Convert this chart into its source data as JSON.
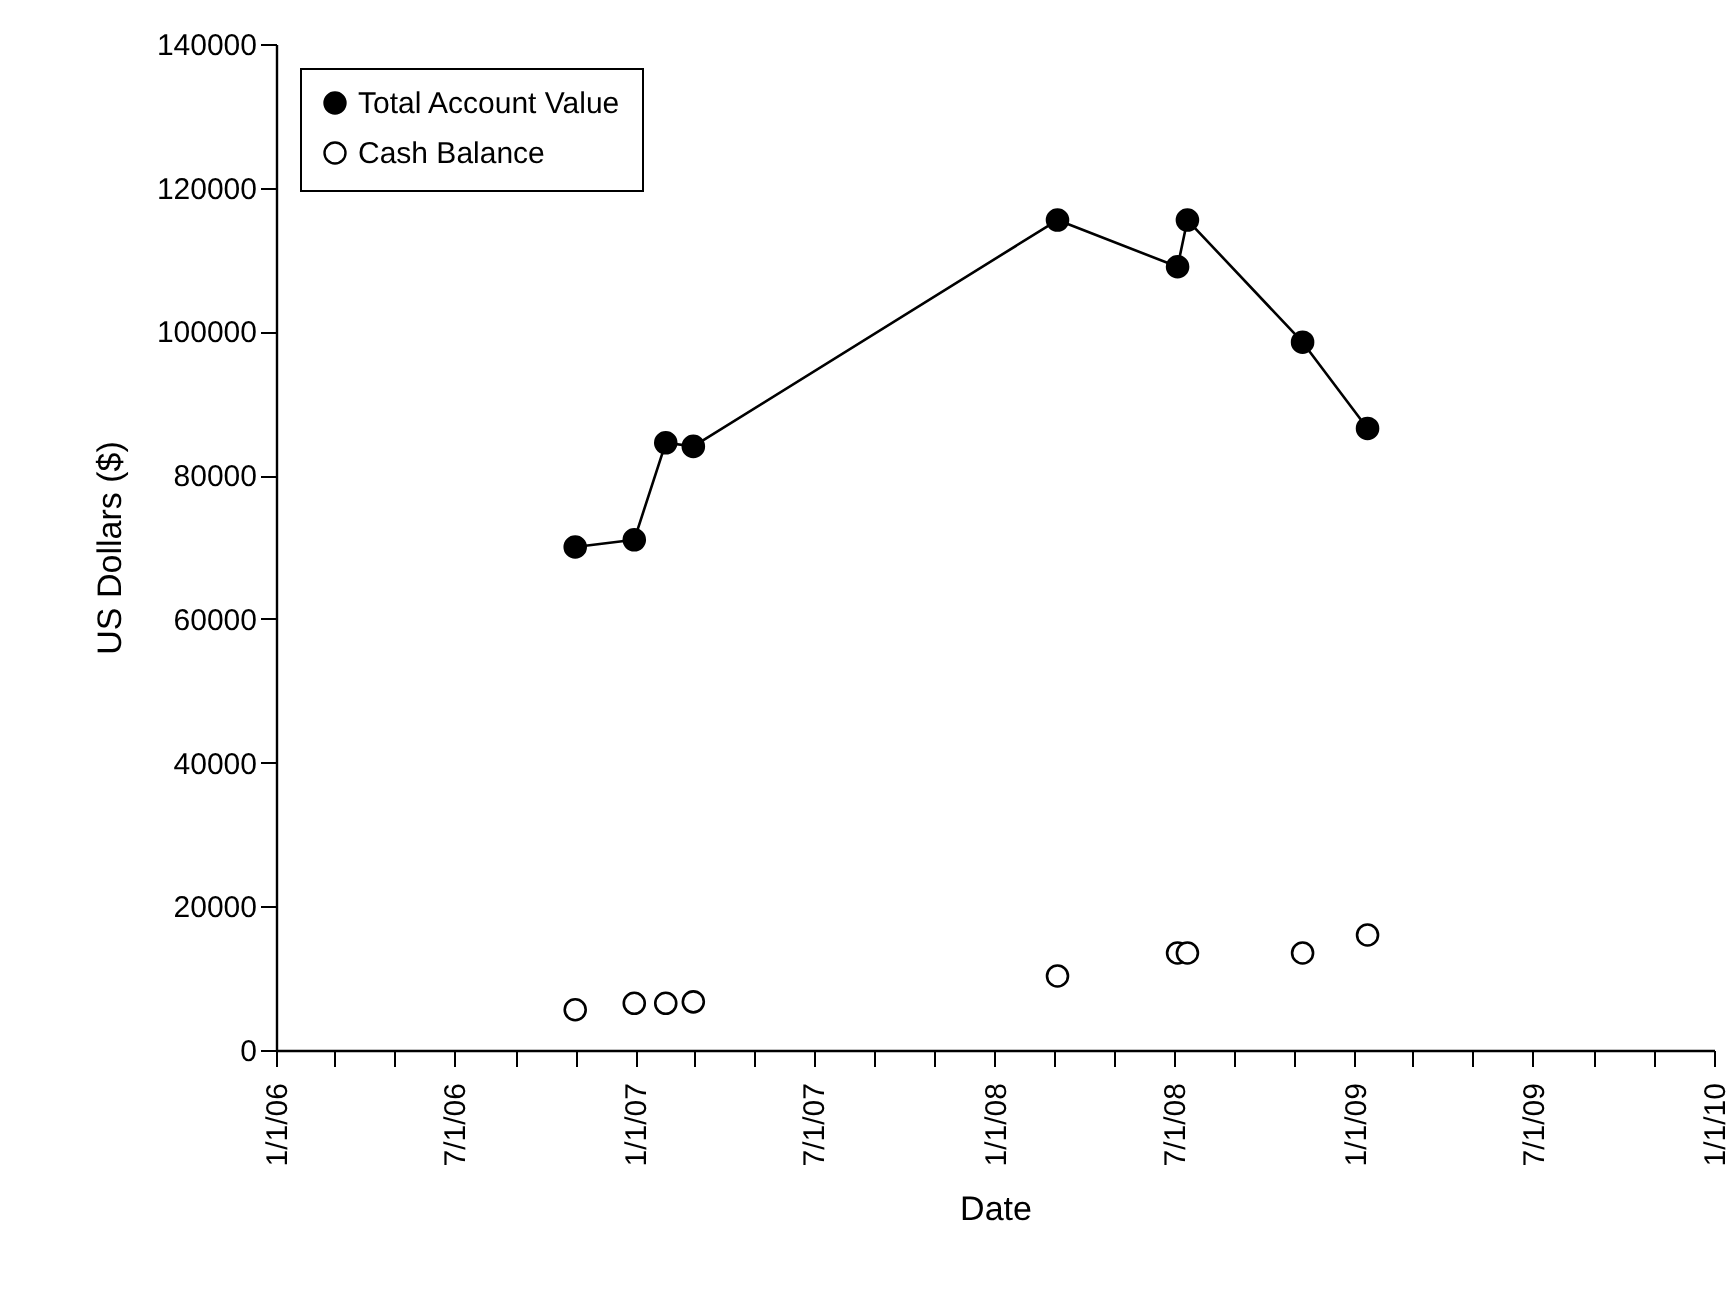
{
  "chart_data": {
    "type": "line",
    "xlabel": "Date",
    "ylabel": "US Dollars ($)",
    "xlim": [
      "2006-01-01",
      "2010-01-01"
    ],
    "xticks": [
      {
        "value": "2006-01-01",
        "label": "1/1/06"
      },
      {
        "value": "2006-03-01",
        "label": null
      },
      {
        "value": "2006-05-01",
        "label": null
      },
      {
        "value": "2006-07-01",
        "label": "7/1/06"
      },
      {
        "value": "2006-09-01",
        "label": null
      },
      {
        "value": "2006-11-01",
        "label": null
      },
      {
        "value": "2007-01-01",
        "label": "1/1/07"
      },
      {
        "value": "2007-03-01",
        "label": null
      },
      {
        "value": "2007-05-01",
        "label": null
      },
      {
        "value": "2007-07-01",
        "label": "7/1/07"
      },
      {
        "value": "2007-09-01",
        "label": null
      },
      {
        "value": "2007-11-01",
        "label": null
      },
      {
        "value": "2008-01-01",
        "label": "1/1/08"
      },
      {
        "value": "2008-03-01",
        "label": null
      },
      {
        "value": "2008-05-01",
        "label": null
      },
      {
        "value": "2008-07-01",
        "label": "7/1/08"
      },
      {
        "value": "2008-09-01",
        "label": null
      },
      {
        "value": "2008-11-01",
        "label": null
      },
      {
        "value": "2009-01-01",
        "label": "1/1/09"
      },
      {
        "value": "2009-03-01",
        "label": null
      },
      {
        "value": "2009-05-01",
        "label": null
      },
      {
        "value": "2009-07-01",
        "label": "7/1/09"
      },
      {
        "value": "2009-09-01",
        "label": null
      },
      {
        "value": "2009-11-01",
        "label": null
      },
      {
        "value": "2010-01-01",
        "label": "1/1/10"
      }
    ],
    "ylim": [
      0,
      140000
    ],
    "yticks": [
      0,
      20000,
      40000,
      60000,
      80000,
      100000,
      120000,
      140000
    ],
    "x": [
      "2006-11-01",
      "2006-12-31",
      "2007-02-01",
      "2007-03-01",
      "2008-03-05",
      "2008-07-05",
      "2008-07-15",
      "2008-11-09",
      "2009-01-14"
    ],
    "series": [
      {
        "name": "Total Account Value",
        "type": "line",
        "color": "#000000",
        "values": [
          70000,
          71000,
          84500,
          84000,
          115500,
          109000,
          115500,
          98500,
          86500
        ]
      },
      {
        "name": "Cash Balance",
        "type": "scatter",
        "color": "#000000",
        "values": [
          5600,
          6500,
          6500,
          6700,
          10300,
          13500,
          13500,
          13500,
          16000
        ]
      }
    ],
    "marker": "circle",
    "grid": false,
    "legend": "top left"
  }
}
